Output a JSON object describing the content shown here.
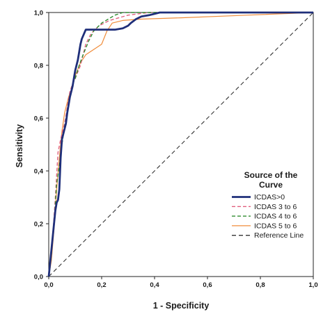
{
  "chart_data": {
    "type": "line",
    "xlabel": "1 - Specificity",
    "ylabel": "Sensitivity",
    "xlim": [
      0,
      1
    ],
    "ylim": [
      0,
      1
    ],
    "x_ticks": [
      "0,0",
      "0,2",
      "0,4",
      "0,6",
      "0,8",
      "1,0"
    ],
    "y_ticks": [
      "0,0",
      "0,2",
      "0,4",
      "0,6",
      "0,8",
      "1,0"
    ],
    "grid": false,
    "legend": {
      "title_line1": "Source of the",
      "title_line2": "Curve",
      "placement": "bottom-right"
    },
    "series": [
      {
        "name": "ICDAS>0",
        "color": "#1f2f7a",
        "style": "solid-thick",
        "points": [
          [
            0,
            0
          ],
          [
            0.005,
            0.05
          ],
          [
            0.015,
            0.15
          ],
          [
            0.025,
            0.25
          ],
          [
            0.03,
            0.28
          ],
          [
            0.035,
            0.29
          ],
          [
            0.04,
            0.33
          ],
          [
            0.045,
            0.45
          ],
          [
            0.05,
            0.52
          ],
          [
            0.055,
            0.54
          ],
          [
            0.06,
            0.56
          ],
          [
            0.065,
            0.58
          ],
          [
            0.07,
            0.62
          ],
          [
            0.075,
            0.65
          ],
          [
            0.08,
            0.68
          ],
          [
            0.09,
            0.72
          ],
          [
            0.1,
            0.78
          ],
          [
            0.11,
            0.82
          ],
          [
            0.115,
            0.85
          ],
          [
            0.12,
            0.88
          ],
          [
            0.125,
            0.9
          ],
          [
            0.14,
            0.935
          ],
          [
            0.15,
            0.935
          ],
          [
            0.18,
            0.935
          ],
          [
            0.2,
            0.935
          ],
          [
            0.25,
            0.935
          ],
          [
            0.28,
            0.94
          ],
          [
            0.3,
            0.95
          ],
          [
            0.31,
            0.96
          ],
          [
            0.33,
            0.975
          ],
          [
            0.35,
            0.985
          ],
          [
            0.38,
            0.99
          ],
          [
            0.42,
            1.0
          ],
          [
            1.0,
            1.0
          ]
        ]
      },
      {
        "name": "ICDAS 3 to 6",
        "color": "#e0607e",
        "style": "dashed",
        "points": [
          [
            0,
            0
          ],
          [
            0.005,
            0.06
          ],
          [
            0.015,
            0.15
          ],
          [
            0.025,
            0.3
          ],
          [
            0.035,
            0.47
          ],
          [
            0.045,
            0.52
          ],
          [
            0.06,
            0.58
          ],
          [
            0.07,
            0.64
          ],
          [
            0.08,
            0.7
          ],
          [
            0.09,
            0.73
          ],
          [
            0.1,
            0.75
          ],
          [
            0.12,
            0.8
          ],
          [
            0.14,
            0.88
          ],
          [
            0.16,
            0.92
          ],
          [
            0.19,
            0.95
          ],
          [
            0.23,
            0.97
          ],
          [
            0.3,
            0.99
          ],
          [
            0.38,
            1.0
          ],
          [
            1.0,
            1.0
          ]
        ]
      },
      {
        "name": "ICDAS 4 to 6",
        "color": "#2e8b2e",
        "style": "dashed",
        "points": [
          [
            0,
            0
          ],
          [
            0.01,
            0.08
          ],
          [
            0.02,
            0.2
          ],
          [
            0.03,
            0.35
          ],
          [
            0.04,
            0.42
          ],
          [
            0.05,
            0.5
          ],
          [
            0.06,
            0.57
          ],
          [
            0.07,
            0.62
          ],
          [
            0.08,
            0.68
          ],
          [
            0.09,
            0.73
          ],
          [
            0.1,
            0.75
          ],
          [
            0.115,
            0.8
          ],
          [
            0.13,
            0.84
          ],
          [
            0.15,
            0.89
          ],
          [
            0.17,
            0.93
          ],
          [
            0.2,
            0.96
          ],
          [
            0.25,
            0.99
          ],
          [
            0.28,
            1.0
          ],
          [
            1.0,
            1.0
          ]
        ]
      },
      {
        "name": "ICDAS 5 to 6",
        "color": "#f08c3a",
        "style": "solid",
        "points": [
          [
            0,
            0
          ],
          [
            0.01,
            0.06
          ],
          [
            0.02,
            0.18
          ],
          [
            0.03,
            0.33
          ],
          [
            0.04,
            0.45
          ],
          [
            0.05,
            0.55
          ],
          [
            0.06,
            0.62
          ],
          [
            0.075,
            0.68
          ],
          [
            0.09,
            0.72
          ],
          [
            0.1,
            0.76
          ],
          [
            0.12,
            0.81
          ],
          [
            0.14,
            0.84
          ],
          [
            0.17,
            0.86
          ],
          [
            0.2,
            0.88
          ],
          [
            0.22,
            0.93
          ],
          [
            0.24,
            0.96
          ],
          [
            0.28,
            0.97
          ],
          [
            0.35,
            0.975
          ],
          [
            0.5,
            0.98
          ],
          [
            0.75,
            0.99
          ],
          [
            1.0,
            1.0
          ]
        ]
      },
      {
        "name": "Reference Line",
        "color": "#333333",
        "style": "dashed-reference",
        "points": [
          [
            0,
            0
          ],
          [
            1,
            1
          ]
        ]
      }
    ]
  }
}
